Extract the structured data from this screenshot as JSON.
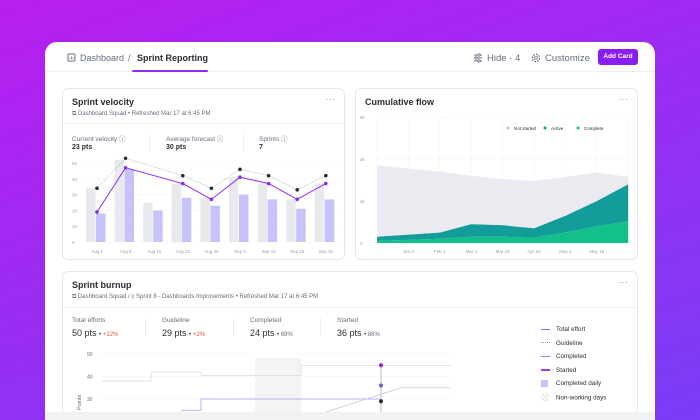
{
  "colors": {
    "accent": "#8a1df2",
    "purple_line": "#8b2cf5",
    "bar_gray": "#e8e9ec",
    "bar_purple": "#c7c3fa",
    "teal": "#129d9a",
    "green": "#14c08a",
    "not_started": "#eaeaf0"
  },
  "topbar": {
    "breadcrumb": [
      "Dashboard",
      "Sprint Reporting"
    ],
    "hide_label": "Hide · 4",
    "customize_label": "Customize",
    "add_card_label": "Add Card",
    "icons": [
      "dashboard-icon",
      "sliders-icon",
      "gear-icon"
    ]
  },
  "velocity": {
    "title": "Sprint velocity",
    "team": "Dashboard Squad",
    "refreshed": "Refreshed Mar 17 at 6:45 PM",
    "stats": [
      {
        "label": "Current velocity",
        "value": "23 pts"
      },
      {
        "label": "Average forecast",
        "value": "30 pts"
      },
      {
        "label": "Sprints",
        "value": "7"
      }
    ]
  },
  "flow": {
    "title": "Cumulative flow",
    "legend": [
      "Not started",
      "Active",
      "Complete"
    ]
  },
  "burnup": {
    "title": "Sprint burnup",
    "team": "Dashboard Squad",
    "sprint": "Sprint 8 - Dashboards Improvements",
    "refreshed": "Refreshed Mar 17 at 6:45 PM",
    "stats": [
      {
        "label": "Total efforts",
        "value": "50 pts",
        "delta": "+12%",
        "delta_color": "#e0533d"
      },
      {
        "label": "Guideline",
        "value": "29 pts",
        "delta": "+2%",
        "delta_color": "#e0533d"
      },
      {
        "label": "Completed",
        "value": "24 pts",
        "delta": "69%",
        "delta_color": "#656f7d"
      },
      {
        "label": "Started",
        "value": "36 pts",
        "delta": "86%",
        "delta_color": "#656f7d"
      }
    ],
    "legend": [
      "Total effort",
      "Guideline",
      "Completed",
      "Started",
      "Completed daily",
      "Non-working days"
    ],
    "ylabel": "Points"
  },
  "chart_data": [
    {
      "type": "bar",
      "title": "Sprint velocity",
      "categories": [
        "Aug 1",
        "Aug 8",
        "Aug 15",
        "Aug 22",
        "Aug 29",
        "Sep 5",
        "Sep 12",
        "Sep 15",
        "Sep 15"
      ],
      "yticks": [
        0,
        10,
        20,
        30,
        40,
        50
      ],
      "ylim": [
        0,
        55
      ],
      "series": [
        {
          "kind": "bar",
          "color": "#e8e9ec",
          "values": [
            34,
            52,
            25,
            37,
            28,
            41,
            37,
            27,
            37
          ]
        },
        {
          "kind": "bar",
          "color": "#c7c3fa",
          "values": [
            18,
            46,
            20,
            28,
            23,
            30,
            27,
            21,
            27
          ]
        },
        {
          "kind": "line",
          "color": "#2a2e34",
          "dashed": true,
          "values": [
            34,
            53,
            null,
            42,
            34,
            46,
            42,
            33,
            42
          ]
        },
        {
          "kind": "line",
          "color": "#8b2cf5",
          "values": [
            19,
            47,
            null,
            37,
            27,
            41,
            37,
            27,
            37
          ]
        }
      ]
    },
    {
      "type": "area",
      "title": "Cumulative flow",
      "x": [
        "",
        "Jan 3",
        "Feb 4",
        "Mar 4",
        "Mar 24",
        "Apr 24",
        "May 4",
        "May 15",
        ""
      ],
      "yticks": [
        "0",
        "2k",
        "4k",
        "6k"
      ],
      "ylim": [
        0,
        6000
      ],
      "stacked": true,
      "legend_position": "top-right",
      "grid": true,
      "series": [
        {
          "name": "Complete",
          "color": "#14c08a",
          "values": [
            100,
            150,
            200,
            300,
            300,
            250,
            500,
            800,
            1050
          ]
        },
        {
          "name": "Active",
          "color": "#129d9a",
          "values": [
            200,
            250,
            300,
            600,
            550,
            450,
            800,
            1200,
            1750
          ]
        },
        {
          "name": "Not started",
          "color": "#eaeaf0",
          "values": [
            3400,
            3150,
            2900,
            2300,
            2200,
            2250,
            1850,
            1350,
            350
          ]
        }
      ]
    },
    {
      "type": "line",
      "title": "Sprint burnup",
      "yticks": [
        30,
        40,
        50
      ],
      "ylabel": "Points",
      "series": [
        {
          "name": "Total effort",
          "color": "#d9d9de",
          "step": [
            [
              0,
              38
            ],
            [
              1,
              42
            ],
            [
              2,
              40.5
            ],
            [
              3,
              40.5
            ],
            [
              4,
              45
            ],
            [
              7,
              45
            ]
          ]
        },
        {
          "name": "Completed",
          "color": "#a79bf7",
          "step": [
            [
              1.6,
              25
            ],
            [
              2,
              30
            ],
            [
              5.6,
              30
            ],
            [
              5.6,
              36
            ]
          ]
        },
        {
          "name": "Guideline",
          "color": "#c9c9ce",
          "points": [
            [
              4.5,
              22
            ],
            [
              6,
              35
            ],
            [
              7,
              35
            ]
          ]
        }
      ],
      "markers": [
        {
          "value": 45,
          "color": "#8a1df2"
        },
        {
          "value": 36,
          "color": "#6b5cf5"
        },
        {
          "value": 29,
          "color": "#2a2e34"
        }
      ]
    }
  ]
}
